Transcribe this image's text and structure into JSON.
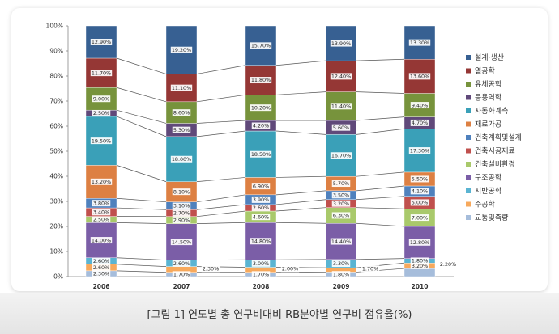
{
  "caption": "[그림 1] 연도별 총 연구비대비 RB분야별 연구비 점유율(%)",
  "chart_data": {
    "type": "bar",
    "stacked": true,
    "percent": true,
    "categories": [
      "2006",
      "2007",
      "2008",
      "2009",
      "2010"
    ],
    "yticks": [
      "0%",
      "10%",
      "20%",
      "30%",
      "40%",
      "50%",
      "60%",
      "70%",
      "80%",
      "90%",
      "100%"
    ],
    "ylim": [
      0,
      100
    ],
    "legend_position": "right",
    "series": [
      {
        "name": "교통및측량",
        "color": "#a6bddb",
        "values": [
          2.3,
          1.7,
          1.7,
          1.8,
          3.2
        ],
        "labels": [
          "2.30%",
          "1.70%",
          "1.70%",
          "1.80%",
          "3.20%"
        ]
      },
      {
        "name": "수공학",
        "color": "#f7a95c",
        "values": [
          2.6,
          2.3,
          2.0,
          1.7,
          2.2
        ],
        "labels": [
          "2.60%",
          "2.30%",
          "2.00%",
          "1.70%",
          "2.20%"
        ]
      },
      {
        "name": "지반공학",
        "color": "#5ab4d2",
        "values": [
          2.6,
          2.6,
          3.0,
          3.3,
          1.8
        ],
        "labels": [
          "2.60%",
          "2.60%",
          "3.00%",
          "3.30%",
          "1.80%"
        ]
      },
      {
        "name": "구조공학",
        "color": "#7b5ea7",
        "values": [
          14.0,
          14.5,
          14.8,
          14.4,
          12.8
        ],
        "labels": [
          "14.00%",
          "14.50%",
          "14.80%",
          "14.40%",
          "12.80%"
        ]
      },
      {
        "name": "건축설비환경",
        "color": "#a9c96b",
        "values": [
          2.5,
          2.9,
          4.6,
          6.3,
          7.0
        ],
        "labels": [
          "2.50%",
          "2.90%",
          "4.60%",
          "6.30%",
          "7.00%"
        ]
      },
      {
        "name": "건축시공재료",
        "color": "#c0504d",
        "values": [
          3.4,
          2.7,
          2.6,
          3.2,
          5.0
        ],
        "labels": [
          "3.40%",
          "2.70%",
          "2.60%",
          "3.20%",
          "5.00%"
        ]
      },
      {
        "name": "건축계획및설계",
        "color": "#4f81bd",
        "values": [
          3.8,
          3.1,
          3.9,
          3.5,
          4.1
        ],
        "labels": [
          "3.80%",
          "3.10%",
          "3.90%",
          "3.50%",
          "4.10%"
        ]
      },
      {
        "name": "재료가공",
        "color": "#dd8043",
        "values": [
          13.2,
          8.1,
          6.9,
          5.7,
          5.5
        ],
        "labels": [
          "13.20%",
          "8.10%",
          "6.90%",
          "5.70%",
          "5.50%"
        ]
      },
      {
        "name": "자동화계측",
        "color": "#3aa0b8",
        "values": [
          19.5,
          18.0,
          18.5,
          16.7,
          17.3
        ],
        "labels": [
          "19.50%",
          "18.00%",
          "18.50%",
          "16.70%",
          "17.30%"
        ]
      },
      {
        "name": "응용역학",
        "color": "#60497a",
        "values": [
          2.5,
          5.3,
          4.2,
          5.6,
          4.7
        ],
        "labels": [
          "2.50%",
          "5.30%",
          "4.20%",
          "5.60%",
          "4.70%"
        ]
      },
      {
        "name": "유체공학",
        "color": "#77933c",
        "values": [
          9.0,
          8.6,
          10.2,
          11.4,
          9.4
        ],
        "labels": [
          "9.00%",
          "8.60%",
          "10.20%",
          "11.40%",
          "9.40%"
        ]
      },
      {
        "name": "열공학",
        "color": "#953735",
        "values": [
          11.7,
          11.1,
          11.8,
          12.4,
          13.6
        ],
        "labels": [
          "11.70%",
          "11.10%",
          "11.80%",
          "12.40%",
          "13.60%"
        ]
      },
      {
        "name": "설계·생산",
        "color": "#376092",
        "values": [
          12.9,
          19.2,
          15.7,
          13.9,
          13.3
        ],
        "labels": [
          "12.90%",
          "19.20%",
          "15.70%",
          "13.90%",
          "13.30%"
        ]
      }
    ]
  }
}
